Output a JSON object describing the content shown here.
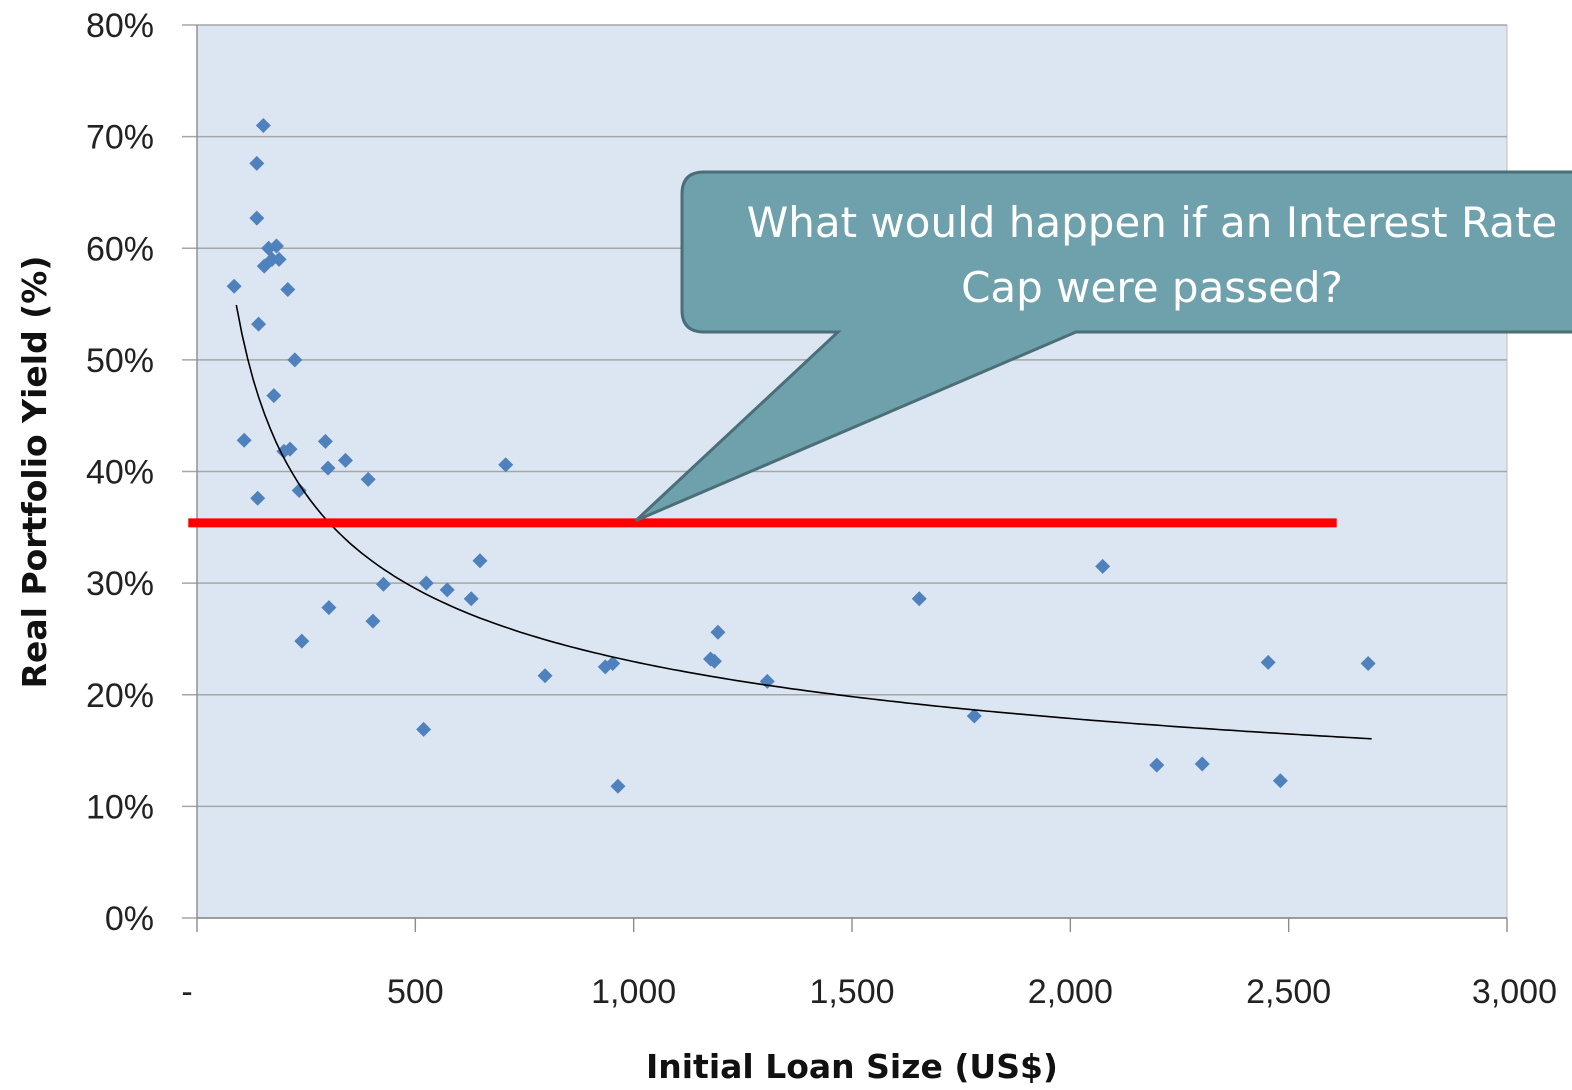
{
  "chart_data": {
    "type": "scatter",
    "xlabel": "Initial Loan Size (US$)",
    "ylabel": "Real Portfolio Yield (%)",
    "xlim": [
      0,
      3000
    ],
    "ylim": [
      0,
      80
    ],
    "x_ticks": [
      0,
      500,
      1000,
      1500,
      2000,
      2500,
      3000
    ],
    "x_tick_labels": [
      "-",
      "500",
      "1,000",
      "1,500",
      "2,000",
      "2,500",
      "3,000"
    ],
    "y_ticks": [
      0,
      10,
      20,
      30,
      40,
      50,
      60,
      70,
      80
    ],
    "y_tick_labels": [
      "0%",
      "10%",
      "20%",
      "30%",
      "40%",
      "50%",
      "60%",
      "70%",
      "80%"
    ],
    "grid": "horizontal",
    "plot_background": "#dce6f2",
    "gridline_color": "#a6a6a6",
    "marker_color": "#4f81bd",
    "series": [
      {
        "points": [
          [
            85,
            56.6
          ],
          [
            108,
            42.8
          ],
          [
            137,
            67.6
          ],
          [
            137,
            62.7
          ],
          [
            139,
            37.6
          ],
          [
            141,
            53.2
          ],
          [
            152,
            71.0
          ],
          [
            154,
            58.4
          ],
          [
            164,
            60.0
          ],
          [
            172,
            59.0
          ],
          [
            176,
            46.8
          ],
          [
            182,
            60.2
          ],
          [
            188,
            59.0
          ],
          [
            199,
            41.8
          ],
          [
            208,
            56.3
          ],
          [
            213,
            42.0
          ],
          [
            224,
            50.0
          ],
          [
            234,
            38.3
          ],
          [
            240,
            24.8
          ],
          [
            294,
            42.7
          ],
          [
            300,
            40.3
          ],
          [
            302,
            27.8
          ],
          [
            340,
            41.0
          ],
          [
            392,
            39.3
          ],
          [
            403,
            26.6
          ],
          [
            427,
            29.9
          ],
          [
            519,
            16.9
          ],
          [
            525,
            30.0
          ],
          [
            573,
            29.4
          ],
          [
            628,
            28.6
          ],
          [
            648,
            32.0
          ],
          [
            707,
            40.6
          ],
          [
            797,
            21.7
          ],
          [
            935,
            22.5
          ],
          [
            952,
            22.8
          ],
          [
            964,
            11.8
          ],
          [
            1176,
            23.2
          ],
          [
            1185,
            23.0
          ],
          [
            1193,
            25.6
          ],
          [
            1306,
            21.2
          ],
          [
            1654,
            28.6
          ],
          [
            1780,
            18.1
          ],
          [
            2074,
            31.5
          ],
          [
            2198,
            13.7
          ],
          [
            2302,
            13.8
          ],
          [
            2453,
            22.9
          ],
          [
            2481,
            12.3
          ],
          [
            2682,
            22.8
          ]
        ],
        "color": "#4f81bd"
      }
    ],
    "trendline": {
      "type": "power",
      "a": 280,
      "b": -0.362,
      "x_range": [
        90,
        2690
      ],
      "color": "#000000"
    },
    "reference_line": {
      "y": 35.4,
      "x_range": [
        -20,
        2610
      ],
      "color": "#ff0000"
    },
    "annotation": {
      "lines": [
        "What would happen if an Interest Rate",
        "Cap were passed?"
      ],
      "fill": "#6fa1ad",
      "stroke": "#4a6f78",
      "pointer_target": [
        1005,
        35.6
      ]
    }
  }
}
